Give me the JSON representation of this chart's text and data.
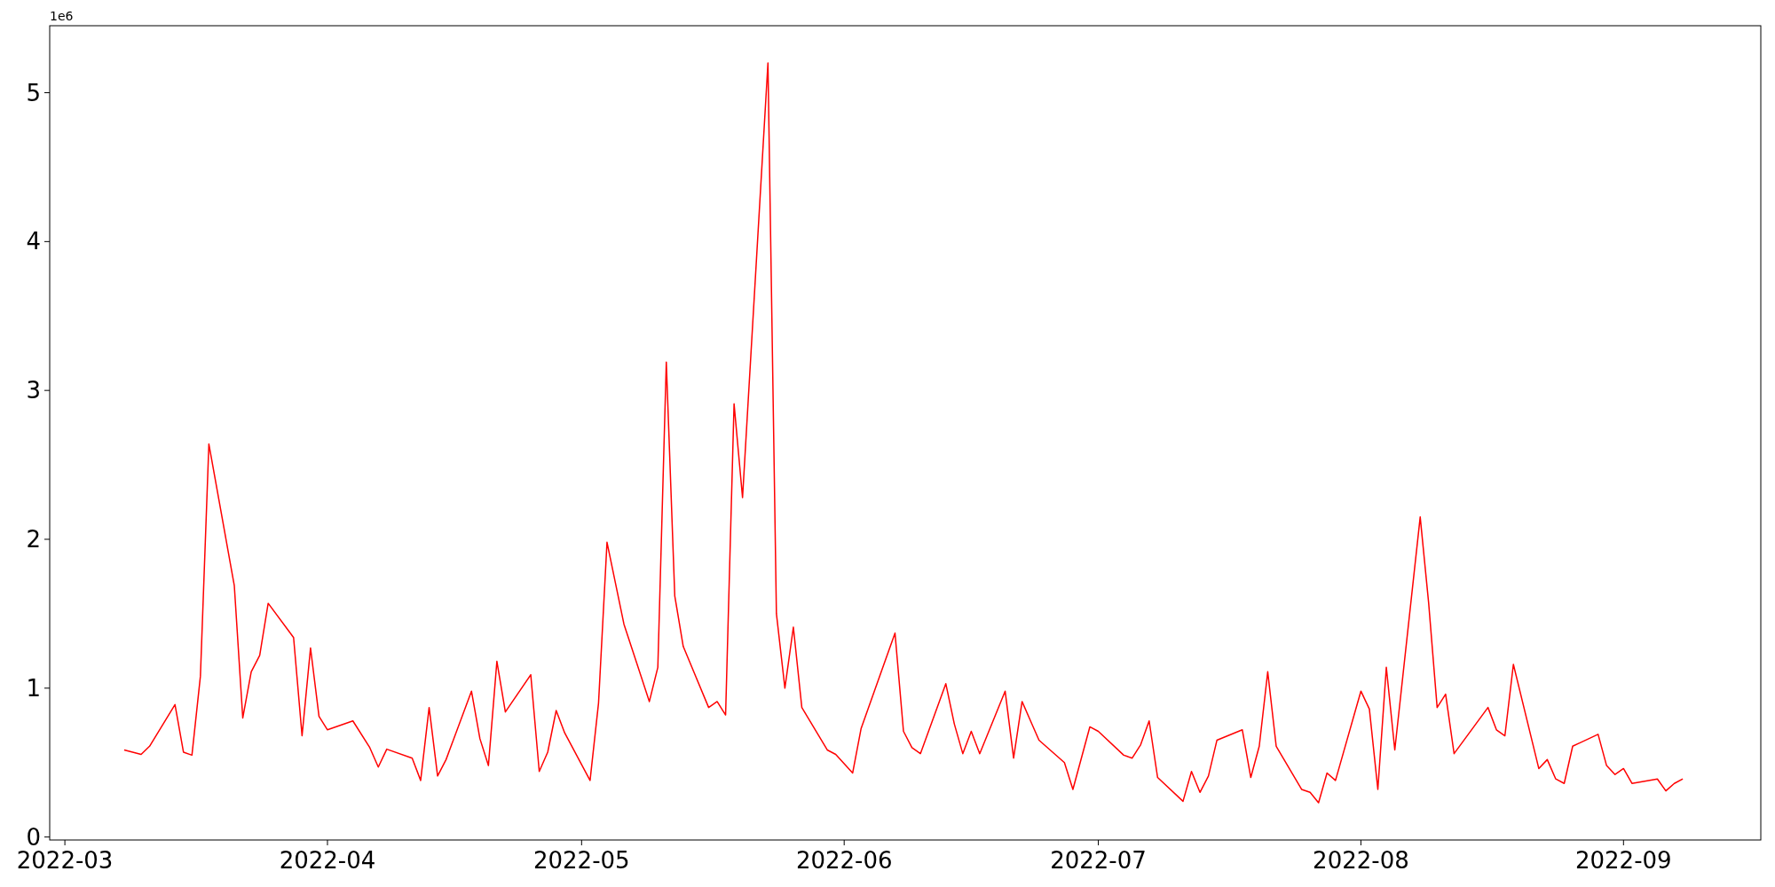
{
  "chart_data": {
    "type": "line",
    "ylabel": "1e6",
    "x": [
      "2022-03-08",
      "2022-03-10",
      "2022-03-11",
      "2022-03-14",
      "2022-03-15",
      "2022-03-16",
      "2022-03-17",
      "2022-03-18",
      "2022-03-21",
      "2022-03-22",
      "2022-03-23",
      "2022-03-24",
      "2022-03-25",
      "2022-03-28",
      "2022-03-29",
      "2022-03-30",
      "2022-03-31",
      "2022-04-01",
      "2022-04-04",
      "2022-04-06",
      "2022-04-07",
      "2022-04-08",
      "2022-04-11",
      "2022-04-12",
      "2022-04-13",
      "2022-04-14",
      "2022-04-15",
      "2022-04-18",
      "2022-04-19",
      "2022-04-20",
      "2022-04-21",
      "2022-04-22",
      "2022-04-25",
      "2022-04-26",
      "2022-04-27",
      "2022-04-28",
      "2022-04-29",
      "2022-05-02",
      "2022-05-03",
      "2022-05-04",
      "2022-05-06",
      "2022-05-09",
      "2022-05-10",
      "2022-05-11",
      "2022-05-12",
      "2022-05-13",
      "2022-05-16",
      "2022-05-17",
      "2022-05-18",
      "2022-05-19",
      "2022-05-20",
      "2022-05-23",
      "2022-05-24",
      "2022-05-25",
      "2022-05-26",
      "2022-05-27",
      "2022-05-30",
      "2022-05-31",
      "2022-06-02",
      "2022-06-03",
      "2022-06-07",
      "2022-06-08",
      "2022-06-09",
      "2022-06-10",
      "2022-06-13",
      "2022-06-14",
      "2022-06-15",
      "2022-06-16",
      "2022-06-17",
      "2022-06-20",
      "2022-06-21",
      "2022-06-22",
      "2022-06-23",
      "2022-06-24",
      "2022-06-27",
      "2022-06-28",
      "2022-06-30",
      "2022-07-01",
      "2022-07-04",
      "2022-07-05",
      "2022-07-06",
      "2022-07-07",
      "2022-07-08",
      "2022-07-11",
      "2022-07-12",
      "2022-07-13",
      "2022-07-14",
      "2022-07-15",
      "2022-07-18",
      "2022-07-19",
      "2022-07-20",
      "2022-07-21",
      "2022-07-22",
      "2022-07-25",
      "2022-07-26",
      "2022-07-27",
      "2022-07-28",
      "2022-07-29",
      "2022-08-01",
      "2022-08-02",
      "2022-08-03",
      "2022-08-04",
      "2022-08-05",
      "2022-08-08",
      "2022-08-09",
      "2022-08-10",
      "2022-08-11",
      "2022-08-12",
      "2022-08-16",
      "2022-08-17",
      "2022-08-18",
      "2022-08-19",
      "2022-08-22",
      "2022-08-23",
      "2022-08-24",
      "2022-08-25",
      "2022-08-26",
      "2022-08-29",
      "2022-08-30",
      "2022-08-31",
      "2022-09-01",
      "2022-09-02",
      "2022-09-05",
      "2022-09-06",
      "2022-09-07",
      "2022-09-08"
    ],
    "series": [
      {
        "color": "#ff0000",
        "values": [
          0.585,
          0.555,
          0.61,
          0.89,
          0.57,
          0.55,
          1.08,
          2.64,
          1.69,
          0.8,
          1.11,
          1.22,
          1.57,
          1.34,
          0.68,
          1.27,
          0.81,
          0.72,
          0.78,
          0.6,
          0.47,
          0.59,
          0.53,
          0.38,
          0.87,
          0.41,
          0.52,
          0.98,
          0.66,
          0.48,
          1.18,
          0.84,
          1.09,
          0.44,
          0.57,
          0.85,
          0.7,
          0.38,
          0.9,
          1.98,
          1.43,
          0.91,
          1.14,
          3.19,
          1.62,
          1.28,
          0.87,
          0.91,
          0.82,
          2.91,
          2.28,
          5.2,
          1.5,
          1.0,
          1.41,
          0.87,
          0.585,
          0.555,
          0.43,
          0.73,
          1.37,
          0.71,
          0.6,
          0.56,
          1.03,
          0.76,
          0.56,
          0.71,
          0.56,
          0.98,
          0.53,
          0.91,
          0.78,
          0.65,
          0.5,
          0.32,
          0.74,
          0.71,
          0.55,
          0.53,
          0.62,
          0.78,
          0.4,
          0.24,
          0.44,
          0.3,
          0.41,
          0.65,
          0.72,
          0.4,
          0.61,
          1.11,
          0.61,
          0.32,
          0.3,
          0.23,
          0.43,
          0.38,
          0.98,
          0.86,
          0.32,
          1.14,
          0.585,
          2.15,
          1.57,
          0.87,
          0.96,
          0.56,
          0.87,
          0.72,
          0.68,
          1.16,
          0.46,
          0.52,
          0.39,
          0.36,
          0.61,
          0.69,
          0.48,
          0.42,
          0.46,
          0.36,
          0.39,
          0.31,
          0.36,
          0.39
        ]
      }
    ],
    "xlim": [
      "2022-02-27T05:00",
      "2022-09-17T05:00"
    ],
    "xticks": [
      {
        "value": "2022-03-01",
        "label": "2022-03"
      },
      {
        "value": "2022-04-01",
        "label": "2022-04"
      },
      {
        "value": "2022-05-01",
        "label": "2022-05"
      },
      {
        "value": "2022-06-01",
        "label": "2022-06"
      },
      {
        "value": "2022-07-01",
        "label": "2022-07"
      },
      {
        "value": "2022-08-01",
        "label": "2022-08"
      },
      {
        "value": "2022-09-01",
        "label": "2022-09"
      }
    ],
    "ylim": [
      -0.02,
      5.45
    ],
    "yticks": [
      0,
      1,
      2,
      3,
      4,
      5
    ]
  }
}
